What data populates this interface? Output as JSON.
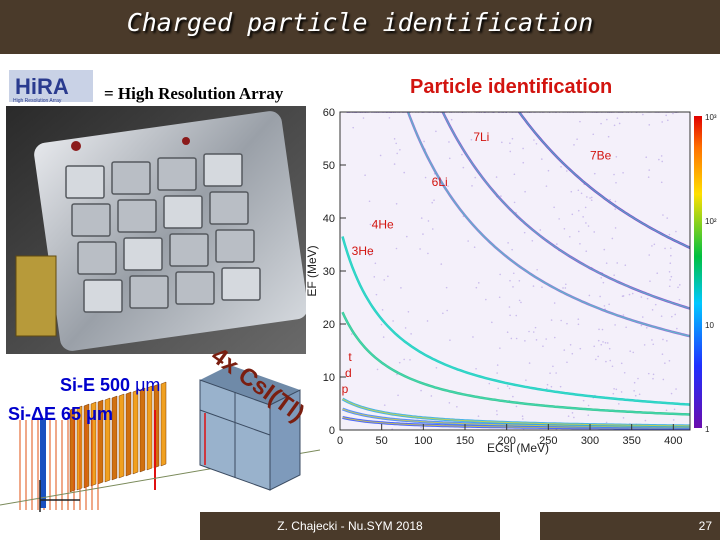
{
  "title": "Charged particle identification",
  "logo": {
    "text": "HiRA",
    "tagline": "High Resolution Array"
  },
  "subtitle": "= High Resolution Array",
  "pid_title": "Particle identification",
  "detector_labels": {
    "si_e": "Si-E 500",
    "si_e_unit": "μm",
    "si_de": "Si-ΔE 65 μm",
    "csi": "4x CsI(Tl)"
  },
  "chart_data": {
    "type": "heatmap",
    "title": "Particle identification",
    "xlabel": "ECsI (MeV)",
    "ylabel": "EF (MeV)",
    "xlim": [
      0,
      420
    ],
    "ylim": [
      0,
      60
    ],
    "x_ticks": [
      "0",
      "50",
      "100",
      "150",
      "200",
      "250",
      "300",
      "350",
      "400"
    ],
    "y_ticks": [
      "0",
      "10",
      "20",
      "30",
      "40",
      "50",
      "60"
    ],
    "colorbar_ticks": [
      "1",
      "10",
      "10²",
      "10³"
    ],
    "bands": [
      {
        "label": "p",
        "k": 150
      },
      {
        "label": "d",
        "k": 250
      },
      {
        "label": "t",
        "k": 370
      },
      {
        "label": "3He",
        "k": 1400
      },
      {
        "label": "4He",
        "k": 2300
      },
      {
        "label": "6Li",
        "k": 8500
      },
      {
        "label": "7Li",
        "k": 11000
      },
      {
        "label": "7Be",
        "k": 16500
      }
    ],
    "band_labels": [
      "7Li",
      "7Be",
      "6Li",
      "4He",
      "3He",
      "t",
      "d",
      "p"
    ]
  },
  "footer": "Z. Chajecki - Nu.SYM 2018",
  "page_number": "27",
  "colors": {
    "title_bar": "#4a3a2a",
    "pid_title": "#d2140f",
    "label_blue": "#0000cc"
  }
}
